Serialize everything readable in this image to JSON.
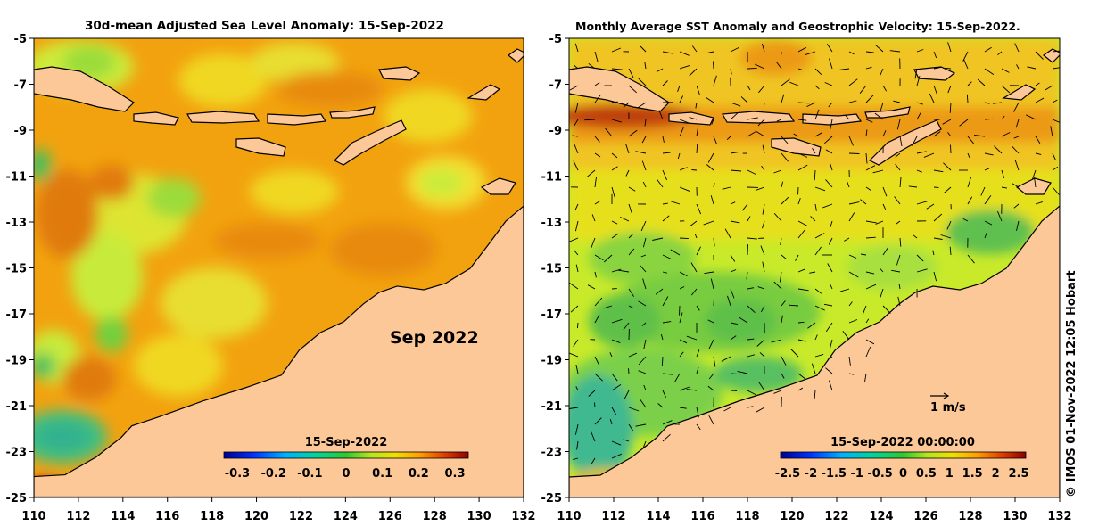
{
  "left_panel": {
    "title": "30d-mean Adjusted Sea Level Anomaly: 15-Sep-2022",
    "month_label": "Sep 2022",
    "colorbar": {
      "title": "15-Sep-2022",
      "ticks": [
        "-0.3",
        "-0.2",
        "-0.1",
        "0",
        "0.1",
        "0.2",
        "0.3"
      ]
    }
  },
  "right_panel": {
    "title": "Monthly Average SST Anomaly  and Geostrophic Velocity: 15-Sep-2022.",
    "scale_label": "1 m/s",
    "colorbar": {
      "title": "15-Sep-2022 00:00:00",
      "ticks": [
        "-2.5",
        "-2",
        "-1.5",
        "-1",
        "-0.5",
        "0",
        "0.5",
        "1",
        "1.5",
        "2",
        "2.5"
      ]
    }
  },
  "axes": {
    "y_ticks": [
      "-5",
      "-7",
      "-9",
      "-11",
      "-13",
      "-15",
      "-17",
      "-19",
      "-21",
      "-23",
      "-25"
    ],
    "x_ticks": [
      "110",
      "112",
      "114",
      "116",
      "118",
      "120",
      "122",
      "124",
      "126",
      "128",
      "130",
      "132"
    ]
  },
  "credit": "© IMOS 01-Nov-2022 12:05 Hobart",
  "colors": {
    "land": "#fdc898",
    "sla_background": "#f2a20f",
    "sst_background": "#c8ea2a"
  }
}
